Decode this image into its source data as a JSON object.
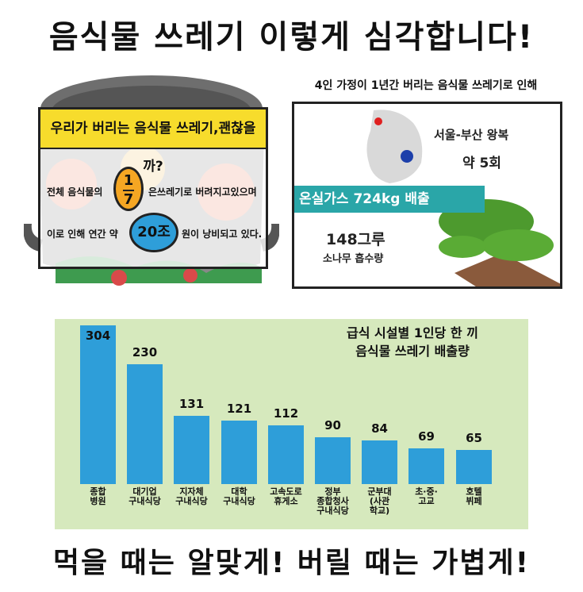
{
  "title": "음식물 쓰레기 이렇게 심각합니다!",
  "left_box": {
    "header": "우리가 버리는 음식물 쓰레기,괜찮을까?",
    "line1_pre": "전체 음식물의",
    "fraction_num": "1",
    "fraction_den": "7",
    "line1_post": "은쓰레기로 버려지고있으며",
    "line2_pre": "이로 인해 연간 약",
    "amount": "20조",
    "line2_post": "원이 낭비되고 있다."
  },
  "right_panel": {
    "caption": "4인 가정이 1년간 버리는 음식물 쓰레기로 인해",
    "trip_label": "서울-부산 왕복",
    "trip_count": "약 5회",
    "ghg": "온실가스 724kg 배출",
    "trees_line1": "148그루",
    "trees_line2": "소나무 흡수량"
  },
  "chart_data": {
    "type": "bar",
    "title": "급식 시설별 1인당 한 끼\n음식물 쓰레기 배출량",
    "title_line1": "급식 시설별 1인당 한 끼",
    "title_line2": "음식물 쓰레기 배출량",
    "categories": [
      [
        "종합",
        "병원"
      ],
      [
        "대기업",
        "구내식당"
      ],
      [
        "지자체",
        "구내식당"
      ],
      [
        "대학",
        "구내식당"
      ],
      [
        "고속도로",
        "휴게소"
      ],
      [
        "정부",
        "종합청사",
        "구내식당"
      ],
      [
        "군부대",
        "(사관",
        "학교)"
      ],
      [
        "초·중·",
        "고교"
      ],
      [
        "호텔",
        "뷔페"
      ]
    ],
    "values": [
      304,
      230,
      131,
      121,
      112,
      90,
      84,
      69,
      65
    ],
    "ylim": [
      0,
      304
    ],
    "bar_color": "#2e9ed9",
    "background": "#d6e9bd"
  },
  "footer": "먹을 때는 알맞게! 버릴 때는 가볍게!",
  "colors": {
    "header_yellow": "#f7dc2c",
    "teal": "#2aa6a8",
    "circle_orange": "#f5a623",
    "circle_blue": "#2e9ed9"
  }
}
